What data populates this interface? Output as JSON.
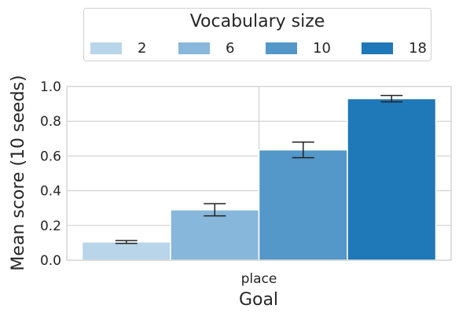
{
  "chart_data": {
    "type": "bar",
    "title": "",
    "xlabel": "Goal",
    "ylabel": "Mean score (10 seeds)",
    "categories": [
      "place"
    ],
    "ylim": [
      0,
      1.0
    ],
    "yticks": [
      "0.0",
      "0.2",
      "0.4",
      "0.6",
      "0.8",
      "1.0"
    ],
    "grid": true,
    "legend": {
      "title": "Vocabulary size",
      "placement": "top-center outside",
      "entries": [
        "2",
        "6",
        "10",
        "18"
      ]
    },
    "series": [
      {
        "name": "2",
        "values": [
          0.105
        ],
        "error": [
          0.008
        ],
        "color": "#b8d5ea"
      },
      {
        "name": "6",
        "values": [
          0.29
        ],
        "error": [
          0.035
        ],
        "color": "#87b7da"
      },
      {
        "name": "10",
        "values": [
          0.635
        ],
        "error": [
          0.045
        ],
        "color": "#5497c9"
      },
      {
        "name": "18",
        "values": [
          0.93
        ],
        "error": [
          0.018
        ],
        "color": "#1f78b7"
      }
    ]
  }
}
